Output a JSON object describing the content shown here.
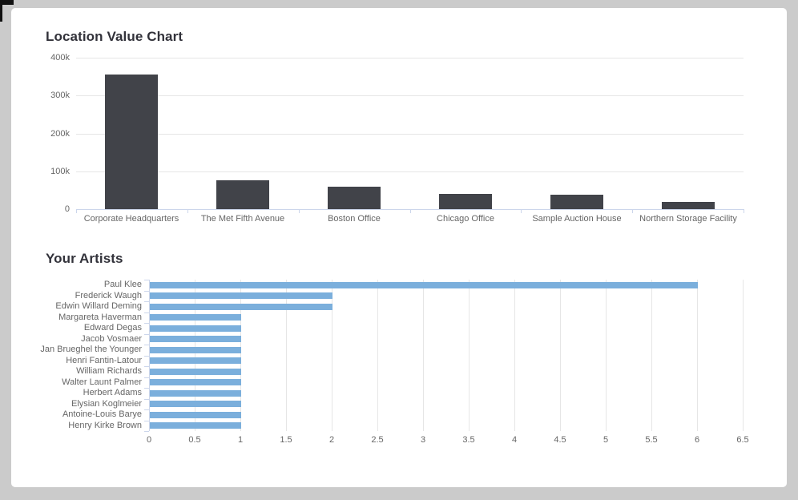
{
  "colors": {
    "background": "#cbcbcb",
    "card": "#ffffff",
    "grid": "#e6e6e6",
    "axis": "#ccd6eb",
    "label": "#666666",
    "title": "#32323a",
    "location_bar": "#414349",
    "artist_bar": "#7bafdc",
    "artifact": "#111111"
  },
  "chart_data": [
    {
      "type": "bar",
      "title": "Location Value Chart",
      "orientation": "vertical",
      "categories": [
        "Corporate Headquarters",
        "The Met Fifth Avenue",
        "Boston Office",
        "Chicago Office",
        "Sample Auction House",
        "Northern Storage Facility"
      ],
      "values": [
        355000,
        76000,
        60000,
        41000,
        39000,
        18000
      ],
      "xlabel": "",
      "ylabel": "",
      "ylim": [
        0,
        400000
      ],
      "ytick_values": [
        0,
        100000,
        200000,
        300000,
        400000
      ],
      "ytick_labels": [
        "0",
        "100k",
        "200k",
        "300k",
        "400k"
      ],
      "grid": true,
      "legend": false,
      "bar_color": "#414349"
    },
    {
      "type": "bar",
      "title": "Your Artists",
      "orientation": "horizontal",
      "categories": [
        "Paul Klee",
        "Frederick Waugh",
        "Edwin Willard Deming",
        "Margareta Haverman",
        "Edward Degas",
        "Jacob Vosmaer",
        "Jan Brueghel the Younger",
        "Henri Fantin-Latour",
        "William Richards",
        "Walter Launt Palmer",
        "Herbert Adams",
        "Elysian Koglmeier",
        "Antoine-Louis Barye",
        "Henry Kirke Brown"
      ],
      "values": [
        6,
        2,
        2,
        1,
        1,
        1,
        1,
        1,
        1,
        1,
        1,
        1,
        1,
        1
      ],
      "xlabel": "",
      "ylabel": "",
      "xlim": [
        0,
        6.7
      ],
      "xtick_values": [
        0,
        0.5,
        1,
        1.5,
        2,
        2.5,
        3,
        3.5,
        4,
        4.5,
        5,
        5.5,
        6,
        6.5
      ],
      "xtick_labels": [
        "0",
        "0.5",
        "1",
        "1.5",
        "2",
        "2.5",
        "3",
        "3.5",
        "4",
        "4.5",
        "5",
        "5.5",
        "6",
        "6.5"
      ],
      "grid": true,
      "legend": false,
      "bar_color": "#7bafdc"
    }
  ]
}
